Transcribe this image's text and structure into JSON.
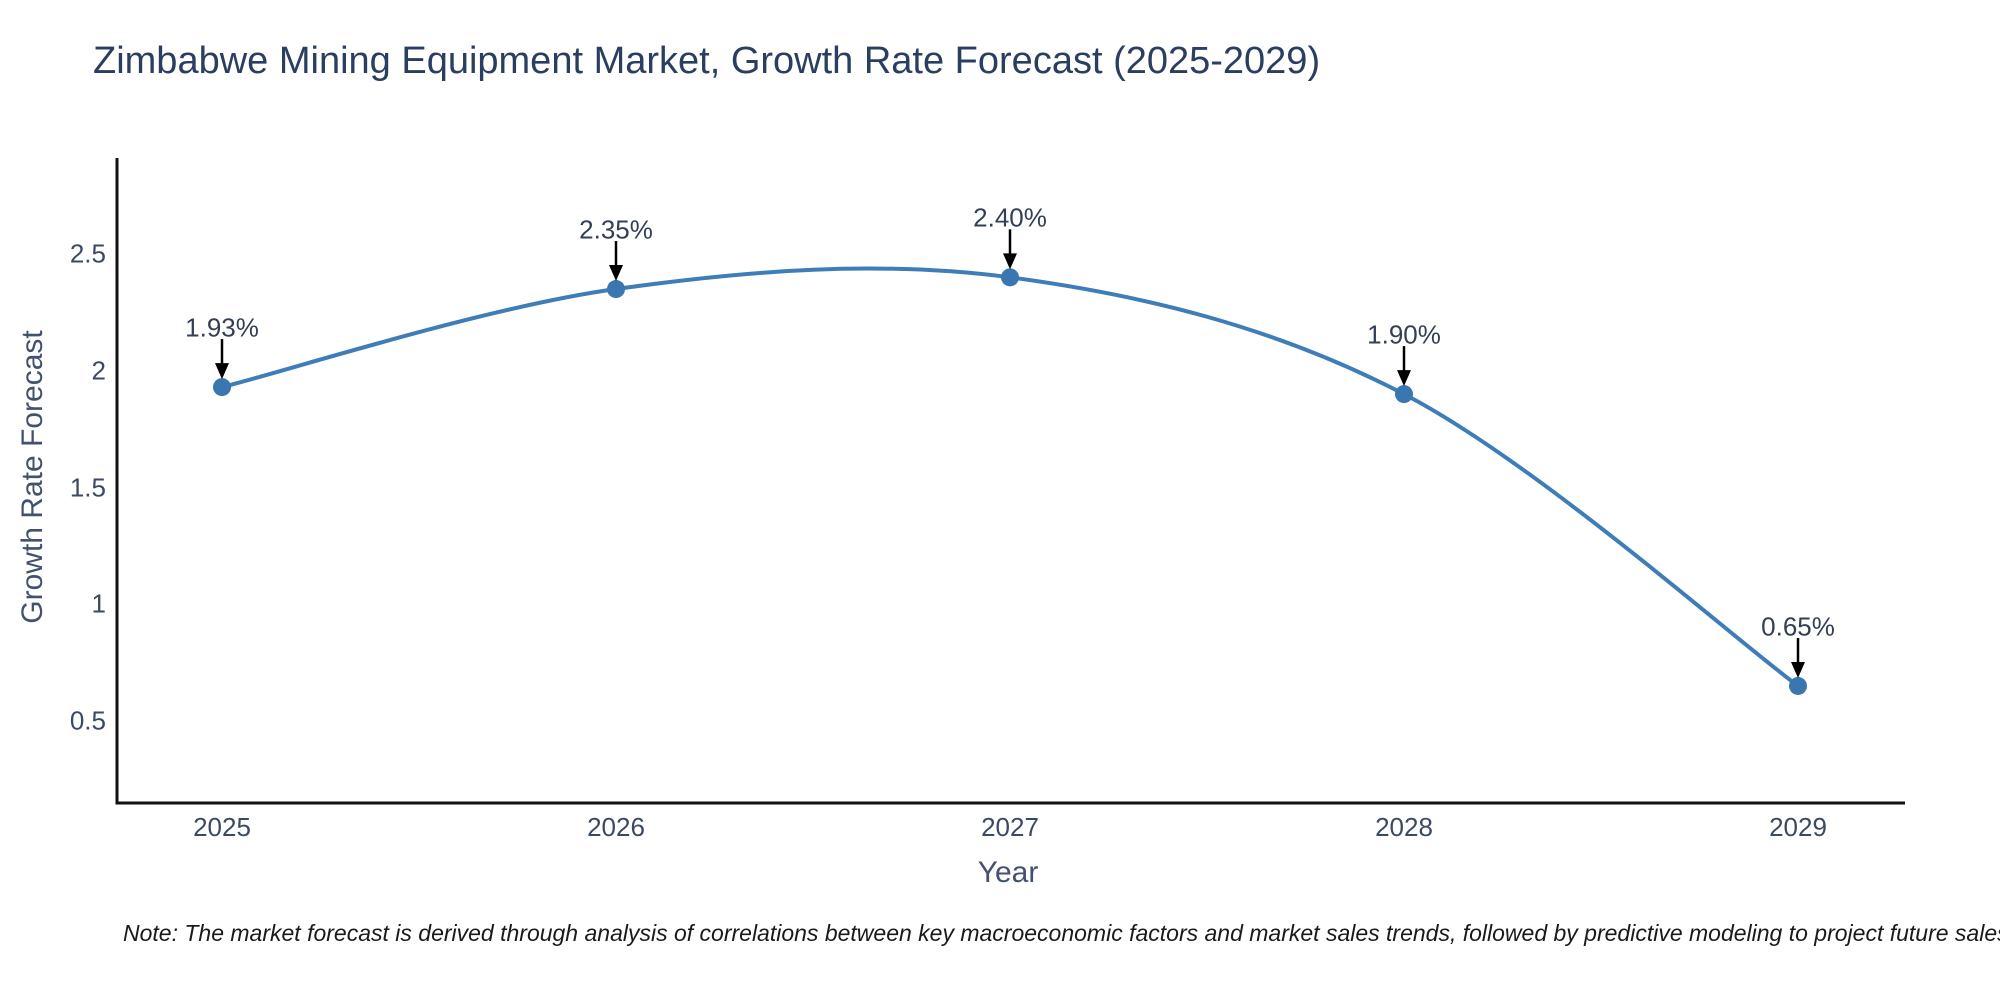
{
  "title": "Zimbabwe Mining Equipment Market, Growth Rate Forecast (2025-2029)",
  "note": "Note: The market forecast is derived through analysis of correlations between key macroeconomic factors and market sales trends, followed by predictive modeling to project future sales",
  "chart_data": {
    "type": "line",
    "title": "Zimbabwe Mining Equipment Market, Growth Rate Forecast (2025-2029)",
    "xlabel": "Year",
    "ylabel": "Growth Rate Forecast",
    "line_shape": "spline",
    "grid": false,
    "legend": "none",
    "x": [
      2025,
      2026,
      2027,
      2028,
      2029
    ],
    "values": [
      1.93,
      2.35,
      2.4,
      1.9,
      0.65
    ],
    "point_labels": [
      "1.93%",
      "2.35%",
      "2.40%",
      "1.90%",
      "0.65%"
    ],
    "x_ticks": [
      "2025",
      "2026",
      "2027",
      "2028",
      "2029"
    ],
    "y_ticks": [
      "0.5",
      "1",
      "1.5",
      "2",
      "2.5"
    ],
    "y_tick_values": [
      0.5,
      1,
      1.5,
      2,
      2.5
    ],
    "xlim": [
      2024.73,
      2029.27
    ],
    "ylim": [
      0.14,
      2.94
    ],
    "colors": {
      "line": "#3e7db8",
      "marker": "#3a76b0",
      "axis": "#111111",
      "arrow": "#000000",
      "title_text": "#2a3f5f",
      "tick_text": "#3b4a63",
      "annotation_text": "#333f52",
      "note_text": "#1a1a1a",
      "background": "#ffffff"
    }
  }
}
